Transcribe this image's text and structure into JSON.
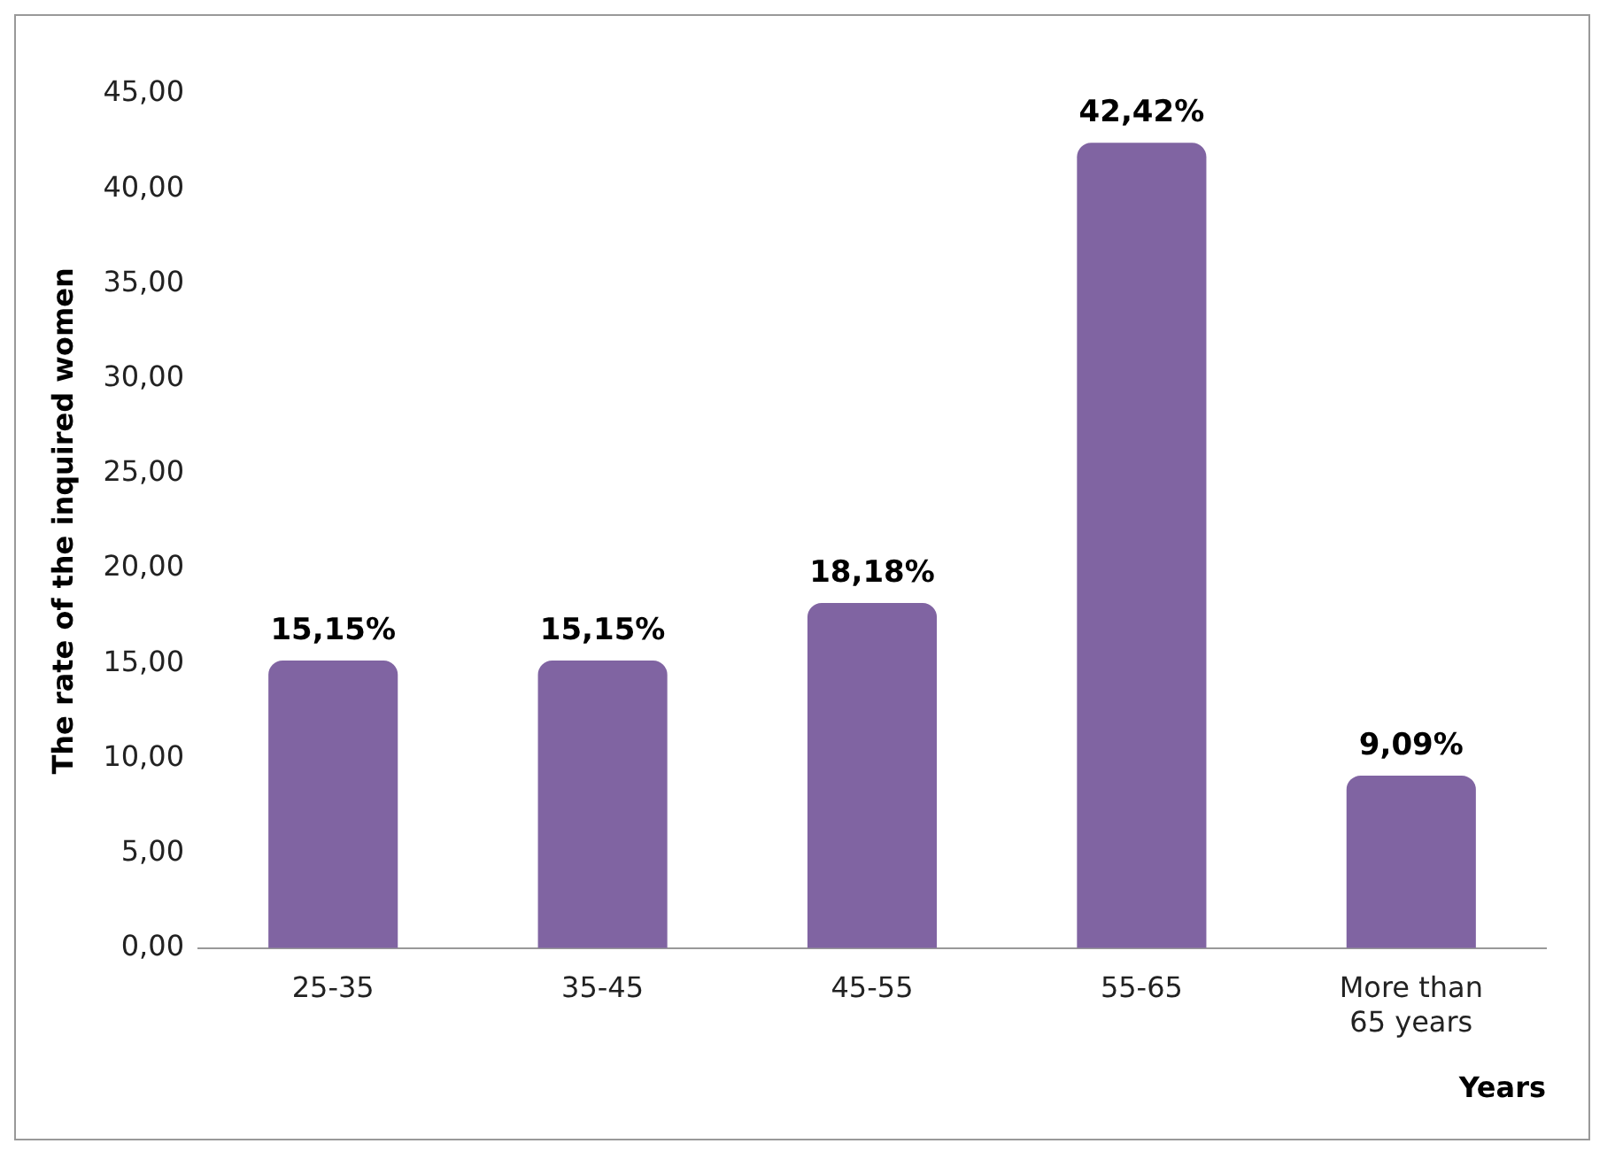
{
  "chart_data": {
    "type": "bar",
    "xlabel": "Years",
    "ylabel": "The rate of the inquired women",
    "categories": [
      "25-35",
      "35-45",
      "45-55",
      "55-65",
      "More than 65 years"
    ],
    "values": [
      15.15,
      15.15,
      18.18,
      42.42,
      9.09
    ],
    "value_labels": [
      "15,15%",
      "15,15%",
      "18,18%",
      "42,42%",
      "9,09%"
    ],
    "color": "#8064a2",
    "ylim": [
      0,
      45
    ],
    "yticks": [
      {
        "value": 0,
        "label": "0,00"
      },
      {
        "value": 5,
        "label": "5,00"
      },
      {
        "value": 10,
        "label": "10,00"
      },
      {
        "value": 15,
        "label": "15,00"
      },
      {
        "value": 20,
        "label": "20,00"
      },
      {
        "value": 25,
        "label": "25,00"
      },
      {
        "value": 30,
        "label": "30,00"
      },
      {
        "value": 35,
        "label": "35,00"
      },
      {
        "value": 40,
        "label": "40,00"
      },
      {
        "value": 45,
        "label": "45,00"
      }
    ],
    "grid": false,
    "legend": false
  }
}
